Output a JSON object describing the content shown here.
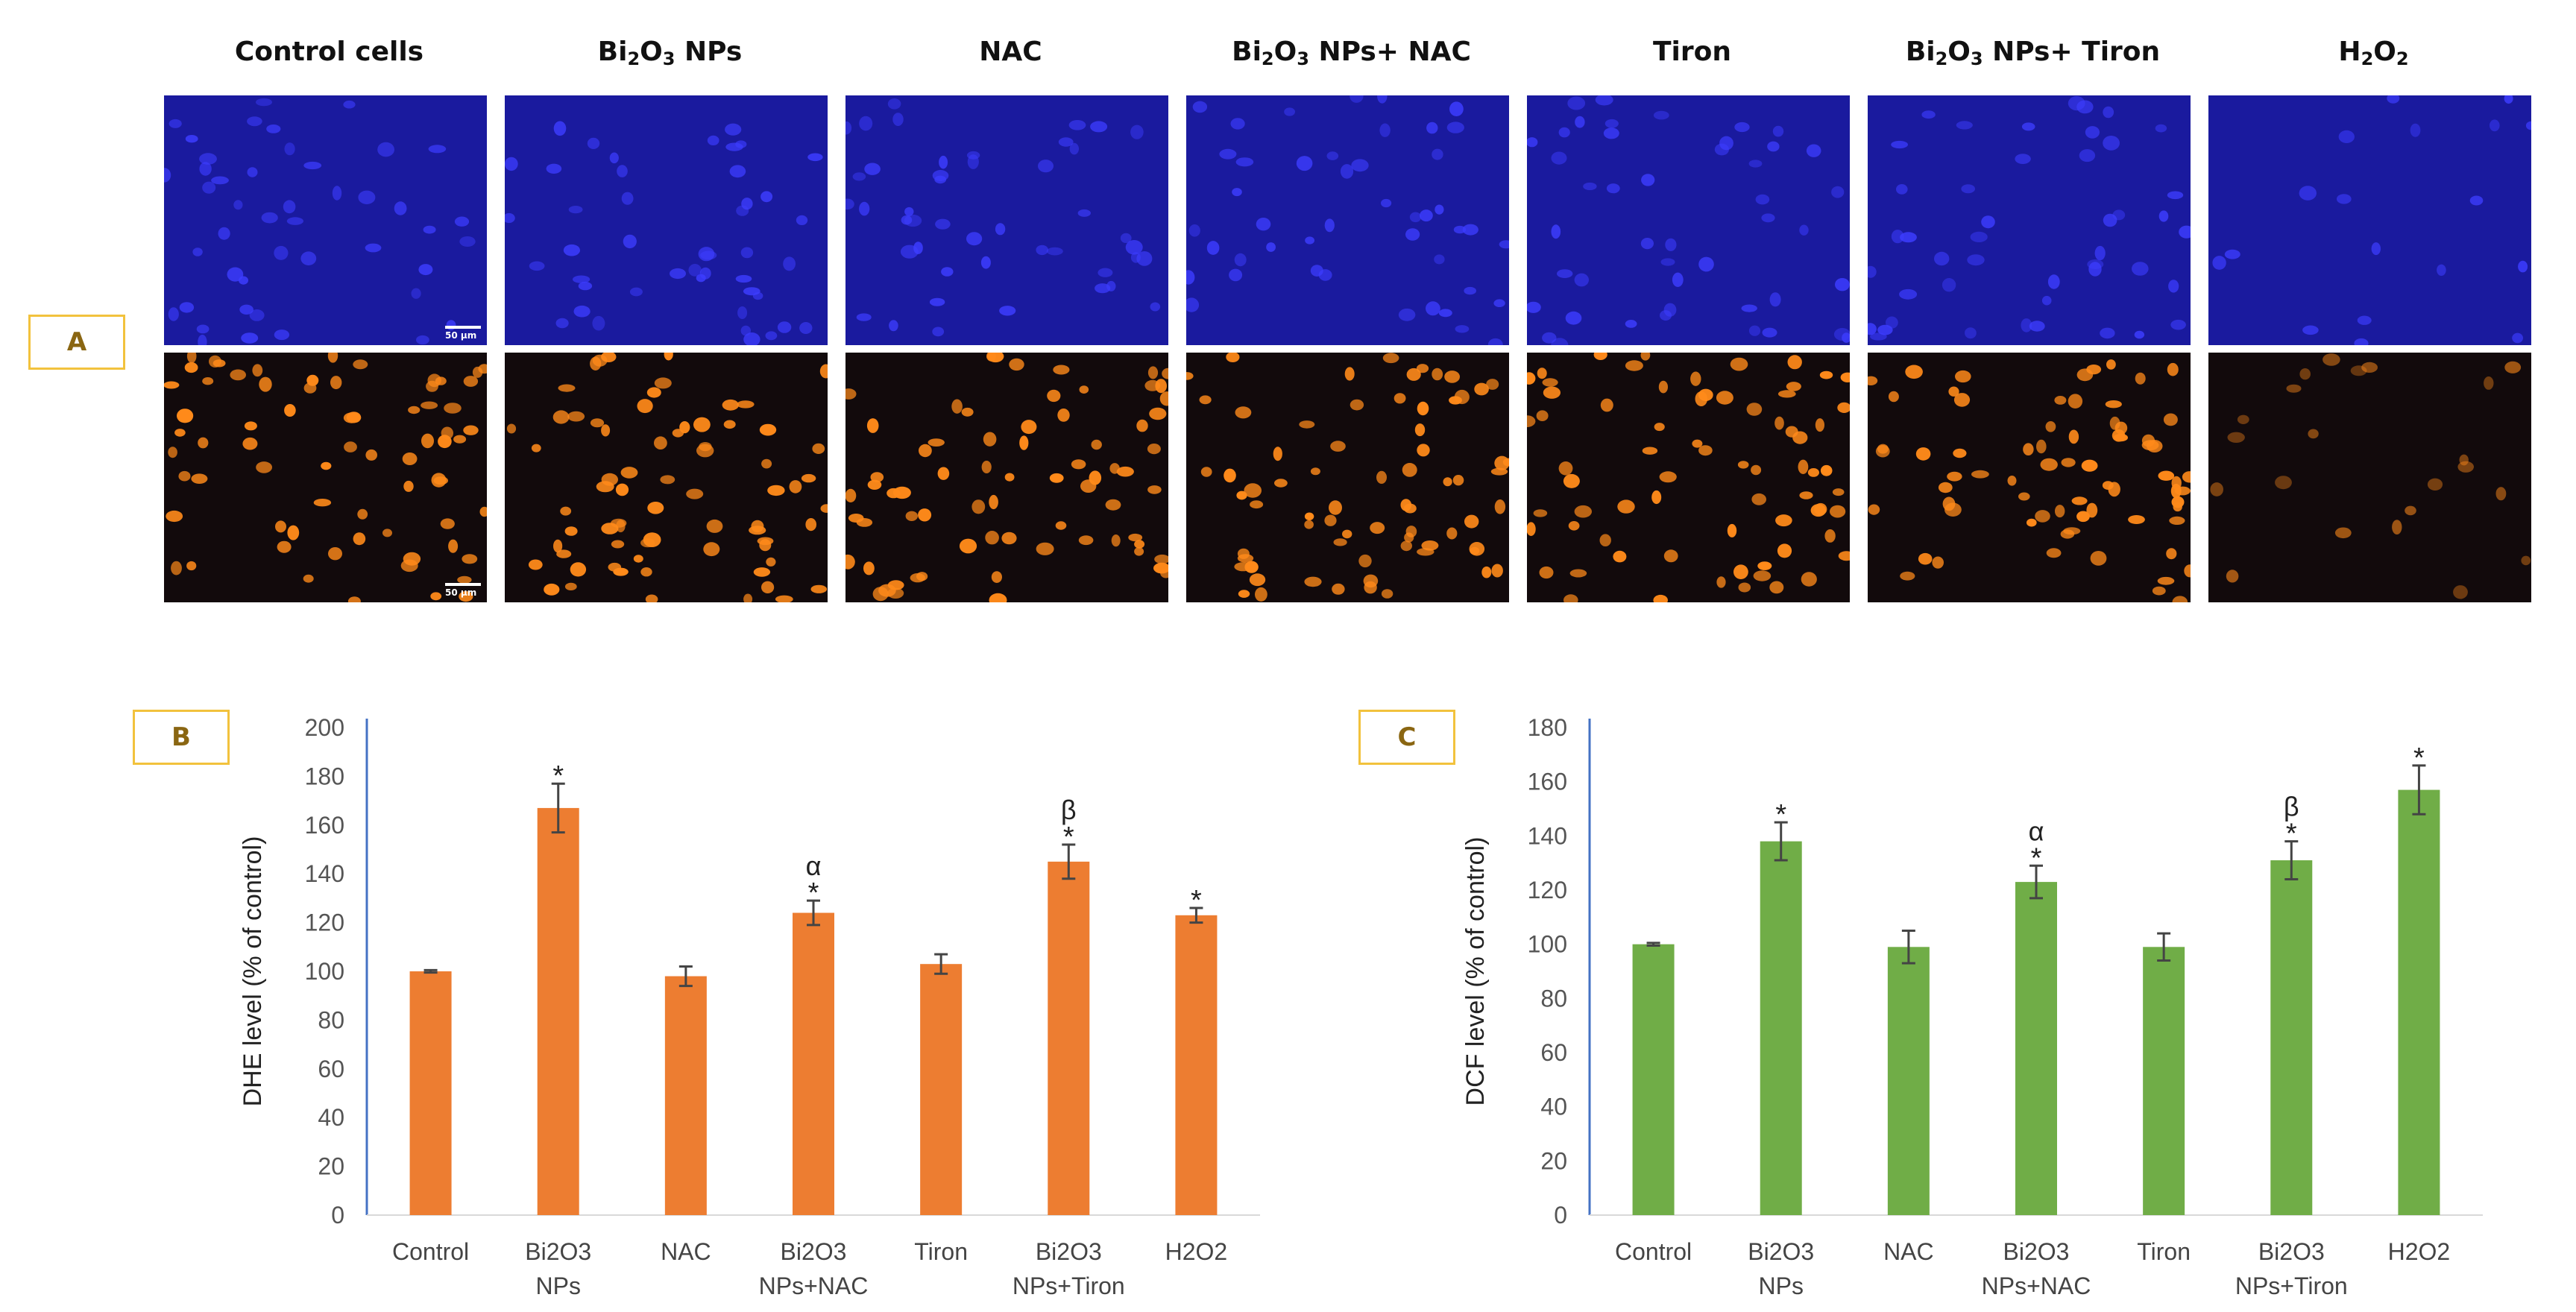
{
  "panel_a": {
    "label": "A",
    "columns": [
      {
        "main": "Control cells",
        "sub": "",
        "tail": ""
      },
      {
        "main": "Bi",
        "sub": "2",
        "mid": "O",
        "sub2": "3",
        "tail": " NPs"
      },
      {
        "main": "NAC",
        "sub": "",
        "tail": ""
      },
      {
        "main": "Bi",
        "sub": "2",
        "mid": "O",
        "sub2": "3",
        "tail": " NPs+ NAC"
      },
      {
        "main": "Tiron",
        "sub": "",
        "tail": ""
      },
      {
        "main": "Bi",
        "sub": "2",
        "mid": "O",
        "sub2": "3",
        "tail": " NPs+ Tiron"
      },
      {
        "main": "H",
        "sub": "2",
        "mid": "O",
        "sub2": "2",
        "tail": ""
      }
    ],
    "scalebar_label": "50 μm",
    "colors": {
      "blue_bg": "#1a1a9e",
      "blue_cell": "#3d3dff",
      "dark_bg": "#120a0c",
      "orange_cell": "#ff8a1a"
    }
  },
  "chart_data": [
    {
      "panel_label": "B",
      "type": "bar",
      "categories": [
        [
          "Control"
        ],
        [
          "Bi2O3",
          "NPs"
        ],
        [
          "NAC"
        ],
        [
          "Bi2O3",
          "NPs+NAC"
        ],
        [
          "Tiron"
        ],
        [
          "Bi2O3",
          "NPs+Tiron"
        ],
        [
          "H2O2"
        ]
      ],
      "values": [
        100,
        167,
        98,
        124,
        103,
        145,
        123
      ],
      "errors": [
        0.5,
        10,
        4,
        5,
        4,
        7,
        3
      ],
      "annotations": [
        [],
        [
          "*"
        ],
        [],
        [
          "α",
          "*"
        ],
        [],
        [
          "β",
          "*"
        ],
        [
          "*"
        ]
      ],
      "ylabel": "DHE level (% of control)",
      "ylim": [
        0,
        200
      ],
      "yticks": [
        0,
        20,
        40,
        60,
        80,
        100,
        120,
        140,
        160,
        180,
        200
      ],
      "color": "#ed7d31"
    },
    {
      "panel_label": "C",
      "type": "bar",
      "categories": [
        [
          "Control"
        ],
        [
          "Bi2O3",
          "NPs"
        ],
        [
          "NAC"
        ],
        [
          "Bi2O3",
          "NPs+NAC"
        ],
        [
          "Tiron"
        ],
        [
          "Bi2O3",
          "NPs+Tiron"
        ],
        [
          "H2O2"
        ]
      ],
      "values": [
        100,
        138,
        99,
        123,
        99,
        131,
        157
      ],
      "errors": [
        0.5,
        7,
        6,
        6,
        5,
        7,
        9
      ],
      "annotations": [
        [],
        [
          "*"
        ],
        [],
        [
          "α",
          "*"
        ],
        [],
        [
          "β",
          "*"
        ],
        [
          "*"
        ]
      ],
      "ylabel": "DCF level (% of control)",
      "ylim": [
        0,
        180
      ],
      "yticks": [
        0,
        20,
        40,
        60,
        80,
        100,
        120,
        140,
        160,
        180
      ],
      "color": "#70ad47"
    }
  ]
}
